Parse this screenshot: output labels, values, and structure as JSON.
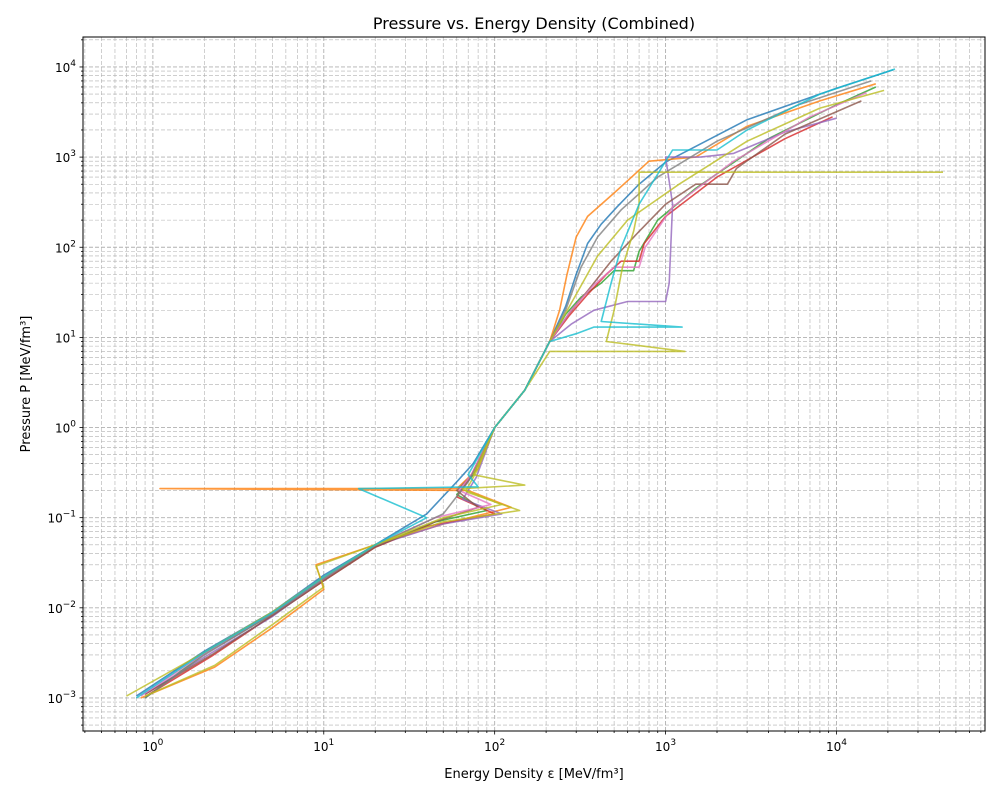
{
  "chart_data": {
    "type": "line",
    "title": "Pressure vs. Energy Density (Combined)",
    "xlabel": "Energy Density ε [MeV/fm³]",
    "ylabel": "Pressure P [MeV/fm³]",
    "xscale": "log",
    "yscale": "log",
    "xlim": [
      0.39,
      74000
    ],
    "ylim": [
      0.00043,
      21500
    ],
    "grid": "major and minor, dashed",
    "legend": "none",
    "x_ticks": [
      {
        "label": "10",
        "exp": "0",
        "value": 1
      },
      {
        "label": "10",
        "exp": "1",
        "value": 10
      },
      {
        "label": "10",
        "exp": "2",
        "value": 100
      },
      {
        "label": "10",
        "exp": "3",
        "value": 1000
      },
      {
        "label": "10",
        "exp": "4",
        "value": 10000
      }
    ],
    "y_ticks": [
      {
        "label": "10",
        "exp": "−3",
        "value": 0.001
      },
      {
        "label": "10",
        "exp": "−2",
        "value": 0.01
      },
      {
        "label": "10",
        "exp": "−1",
        "value": 0.1
      },
      {
        "label": "10",
        "exp": "0",
        "value": 1
      },
      {
        "label": "10",
        "exp": "1",
        "value": 10
      },
      {
        "label": "10",
        "exp": "2",
        "value": 100
      },
      {
        "label": "10",
        "exp": "3",
        "value": 1000
      },
      {
        "label": "10",
        "exp": "4",
        "value": 10000
      }
    ],
    "series": [
      {
        "color": "#1f77b4",
        "points": [
          [
            0.8,
            0.00105
          ],
          [
            2,
            0.0033
          ],
          [
            5,
            0.009
          ],
          [
            10,
            0.023
          ],
          [
            20,
            0.05
          ],
          [
            40,
            0.11
          ],
          [
            60,
            0.25
          ],
          [
            75,
            0.4
          ],
          [
            100,
            1
          ],
          [
            150,
            2.6
          ],
          [
            210,
            9
          ],
          [
            260,
            22
          ],
          [
            300,
            50
          ],
          [
            350,
            110
          ],
          [
            420,
            180
          ],
          [
            520,
            280
          ],
          [
            700,
            500
          ],
          [
            1000,
            880
          ],
          [
            3000,
            2600
          ],
          [
            10000,
            5800
          ],
          [
            21500,
            9300
          ]
        ]
      },
      {
        "color": "#ff7f0e",
        "points": [
          [
            0.85,
            0.001
          ],
          [
            2.3,
            0.0022
          ],
          [
            5,
            0.006
          ],
          [
            10,
            0.016
          ],
          [
            9,
            0.03
          ],
          [
            20,
            0.05
          ],
          [
            50,
            0.085
          ],
          [
            125,
            0.13
          ],
          [
            70,
            0.2
          ],
          [
            1.1,
            0.21
          ],
          [
            60,
            0.21
          ],
          [
            80,
            0.35
          ],
          [
            100,
            1
          ],
          [
            150,
            2.6
          ],
          [
            210,
            9
          ],
          [
            240,
            20
          ],
          [
            265,
            50
          ],
          [
            300,
            130
          ],
          [
            350,
            220
          ],
          [
            500,
            400
          ],
          [
            800,
            900
          ],
          [
            1500,
            1000
          ],
          [
            3000,
            2200
          ],
          [
            8000,
            4200
          ],
          [
            17000,
            6500
          ]
        ]
      },
      {
        "color": "#2ca02c",
        "points": [
          [
            0.9,
            0.001
          ],
          [
            2,
            0.0031
          ],
          [
            5,
            0.0085
          ],
          [
            10,
            0.021
          ],
          [
            20,
            0.048
          ],
          [
            45,
            0.09
          ],
          [
            90,
            0.12
          ],
          [
            60,
            0.18
          ],
          [
            75,
            0.3
          ],
          [
            100,
            1
          ],
          [
            150,
            2.6
          ],
          [
            210,
            9
          ],
          [
            260,
            18
          ],
          [
            320,
            28
          ],
          [
            420,
            40
          ],
          [
            500,
            55
          ],
          [
            650,
            55
          ],
          [
            700,
            90
          ],
          [
            900,
            200
          ],
          [
            1500,
            450
          ],
          [
            4000,
            1600
          ],
          [
            10000,
            3800
          ],
          [
            17000,
            6000
          ]
        ]
      },
      {
        "color": "#d62728",
        "points": [
          [
            0.95,
            0.0011
          ],
          [
            2.2,
            0.0029
          ],
          [
            5,
            0.0082
          ],
          [
            10,
            0.02
          ],
          [
            20,
            0.047
          ],
          [
            40,
            0.08
          ],
          [
            100,
            0.11
          ],
          [
            60,
            0.17
          ],
          [
            72,
            0.28
          ],
          [
            100,
            1
          ],
          [
            150,
            2.6
          ],
          [
            210,
            9
          ],
          [
            270,
            17
          ],
          [
            350,
            30
          ],
          [
            450,
            50
          ],
          [
            550,
            70
          ],
          [
            700,
            70
          ],
          [
            750,
            110
          ],
          [
            1000,
            220
          ],
          [
            2000,
            600
          ],
          [
            5000,
            1600
          ],
          [
            9500,
            2800
          ]
        ]
      },
      {
        "color": "#9467bd",
        "points": [
          [
            0.9,
            0.0011
          ],
          [
            2.1,
            0.003
          ],
          [
            5,
            0.008
          ],
          [
            10,
            0.021
          ],
          [
            20,
            0.049
          ],
          [
            50,
            0.085
          ],
          [
            110,
            0.11
          ],
          [
            65,
            0.16
          ],
          [
            78,
            0.28
          ],
          [
            100,
            1
          ],
          [
            150,
            2.6
          ],
          [
            210,
            9
          ],
          [
            280,
            14
          ],
          [
            380,
            20
          ],
          [
            600,
            25
          ],
          [
            1000,
            25
          ],
          [
            1050,
            40
          ],
          [
            1100,
            300
          ],
          [
            1000,
            1000
          ],
          [
            1600,
            1000
          ],
          [
            2500,
            1100
          ],
          [
            5000,
            1900
          ],
          [
            10000,
            2700
          ]
        ]
      },
      {
        "color": "#8c564b",
        "points": [
          [
            0.9,
            0.0011
          ],
          [
            2.2,
            0.003
          ],
          [
            5,
            0.0082
          ],
          [
            10,
            0.02
          ],
          [
            20,
            0.047
          ],
          [
            45,
            0.09
          ],
          [
            80,
            0.13
          ],
          [
            60,
            0.2
          ],
          [
            74,
            0.3
          ],
          [
            100,
            1
          ],
          [
            150,
            2.6
          ],
          [
            210,
            9
          ],
          [
            270,
            18
          ],
          [
            360,
            35
          ],
          [
            480,
            70
          ],
          [
            700,
            150
          ],
          [
            1000,
            300
          ],
          [
            1500,
            500
          ],
          [
            2300,
            500
          ],
          [
            2600,
            750
          ],
          [
            5000,
            1800
          ],
          [
            14000,
            4200
          ]
        ]
      },
      {
        "color": "#e377c2",
        "points": [
          [
            0.85,
            0.00105
          ],
          [
            2,
            0.0031
          ],
          [
            5,
            0.0087
          ],
          [
            10,
            0.021
          ],
          [
            20,
            0.05
          ],
          [
            45,
            0.1
          ],
          [
            95,
            0.14
          ],
          [
            62,
            0.2
          ],
          [
            73,
            0.3
          ],
          [
            100,
            1
          ],
          [
            150,
            2.6
          ],
          [
            210,
            9
          ],
          [
            280,
            20
          ],
          [
            380,
            38
          ],
          [
            500,
            60
          ],
          [
            700,
            60
          ],
          [
            760,
            100
          ],
          [
            1100,
            280
          ],
          [
            2500,
            900
          ],
          [
            7000,
            2800
          ],
          [
            15000,
            5200
          ]
        ]
      },
      {
        "color": "#7f7f7f",
        "points": [
          [
            0.9,
            0.001
          ],
          [
            2,
            0.003
          ],
          [
            5,
            0.0085
          ],
          [
            10,
            0.021
          ],
          [
            20,
            0.049
          ],
          [
            50,
            0.11
          ],
          [
            70,
            0.25
          ],
          [
            80,
            0.4
          ],
          [
            100,
            1
          ],
          [
            150,
            2.6
          ],
          [
            210,
            9
          ],
          [
            260,
            20
          ],
          [
            320,
            60
          ],
          [
            400,
            130
          ],
          [
            550,
            260
          ],
          [
            900,
            600
          ],
          [
            2000,
            1500
          ],
          [
            6000,
            3800
          ],
          [
            16000,
            7000
          ]
        ]
      },
      {
        "color": "#bcbd22",
        "points": [
          [
            0.9,
            0.00105
          ],
          [
            2.3,
            0.0023
          ],
          [
            5,
            0.0065
          ],
          [
            10,
            0.017
          ],
          [
            9,
            0.029
          ],
          [
            20,
            0.05
          ],
          [
            50,
            0.09
          ],
          [
            140,
            0.12
          ],
          [
            70,
            0.19
          ],
          [
            65,
            0.21
          ],
          [
            150,
            0.23
          ],
          [
            75,
            0.3
          ],
          [
            100,
            1
          ],
          [
            150,
            2.6
          ],
          [
            210,
            7
          ],
          [
            420,
            7
          ],
          [
            1300,
            7
          ],
          [
            450,
            9
          ],
          [
            500,
            20
          ],
          [
            560,
            60
          ],
          [
            650,
            150
          ],
          [
            700,
            300
          ],
          [
            700,
            680
          ],
          [
            42000,
            680
          ]
        ]
      },
      {
        "color": "#bcbd22",
        "points": [
          [
            0.7,
            0.00105
          ],
          [
            2,
            0.0032
          ],
          [
            5,
            0.009
          ],
          [
            10,
            0.022
          ],
          [
            20,
            0.05
          ],
          [
            50,
            0.1
          ],
          [
            110,
            0.14
          ],
          [
            68,
            0.2
          ],
          [
            80,
            0.35
          ],
          [
            100,
            1
          ],
          [
            150,
            2.6
          ],
          [
            210,
            9
          ],
          [
            300,
            30
          ],
          [
            400,
            80
          ],
          [
            600,
            200
          ],
          [
            1200,
            500
          ],
          [
            3000,
            1500
          ],
          [
            8000,
            3500
          ],
          [
            19000,
            5500
          ]
        ]
      },
      {
        "color": "#17becf",
        "points": [
          [
            0.8,
            0.001
          ],
          [
            2,
            0.0032
          ],
          [
            5,
            0.0088
          ],
          [
            10,
            0.022
          ],
          [
            20,
            0.05
          ],
          [
            40,
            0.1
          ],
          [
            16,
            0.21
          ],
          [
            80,
            0.22
          ],
          [
            70,
            0.3
          ],
          [
            100,
            1
          ],
          [
            150,
            2.6
          ],
          [
            210,
            9
          ],
          [
            300,
            11
          ],
          [
            380,
            13
          ],
          [
            1250,
            13
          ],
          [
            420,
            15
          ],
          [
            480,
            40
          ],
          [
            550,
            100
          ],
          [
            700,
            300
          ],
          [
            1100,
            1200
          ],
          [
            2000,
            1200
          ],
          [
            3000,
            2000
          ],
          [
            8000,
            5000
          ],
          [
            22000,
            9500
          ]
        ]
      }
    ]
  }
}
